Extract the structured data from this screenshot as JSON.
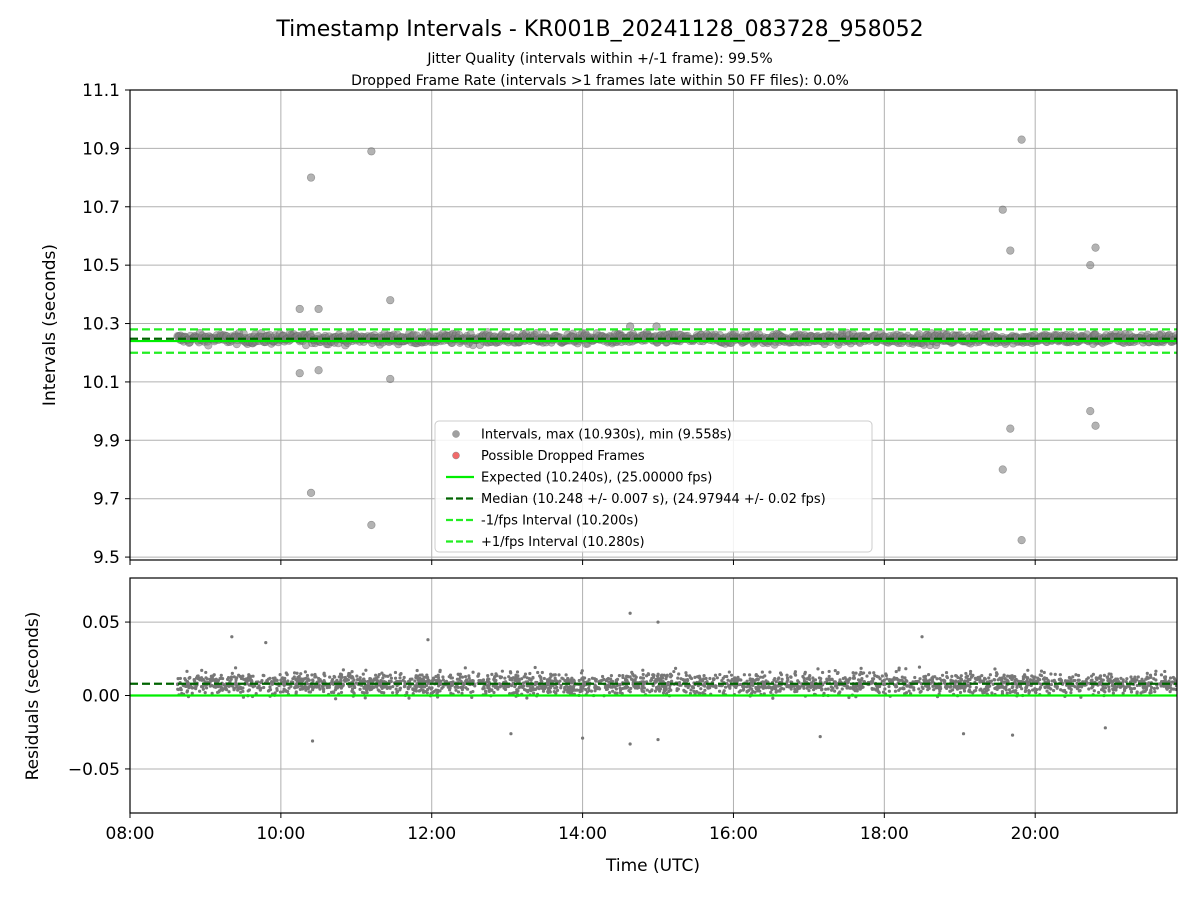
{
  "figure": {
    "title": "Timestamp Intervals - KR001B_20241128_083728_958052",
    "subtitle_jitter": "Jitter Quality (intervals within +/-1 frame): 99.5%",
    "subtitle_dropped": "Dropped Frame Rate (intervals >1 frames late within 50 FF files): 0.0%"
  },
  "chart_data": [
    {
      "type": "scatter",
      "ylabel": "Intervals (seconds)",
      "xlim_hours": [
        8.0,
        21.88
      ],
      "ylim": [
        9.49,
        11.1
      ],
      "yticks": [
        9.5,
        9.7,
        9.9,
        10.1,
        10.3,
        10.5,
        10.7,
        10.9,
        11.1
      ],
      "ytick_labels": [
        "9.5",
        "9.7",
        "9.9",
        "10.1",
        "10.3",
        "10.5",
        "10.7",
        "10.9",
        "11.1"
      ],
      "grid": true,
      "legend_position": "lower-center",
      "band": {
        "x_start_hours": 8.63,
        "x_end_hours": 21.88,
        "center": 10.248,
        "spread": 0.03
      },
      "outliers": [
        [
          10.25,
          10.35
        ],
        [
          10.25,
          10.13
        ],
        [
          10.4,
          10.8
        ],
        [
          10.4,
          9.72
        ],
        [
          10.5,
          10.35
        ],
        [
          10.5,
          10.14
        ],
        [
          11.2,
          10.89
        ],
        [
          11.2,
          9.61
        ],
        [
          11.45,
          10.38
        ],
        [
          11.45,
          10.11
        ],
        [
          14.63,
          10.29
        ],
        [
          14.98,
          10.29
        ],
        [
          19.57,
          10.69
        ],
        [
          19.57,
          9.8
        ],
        [
          19.67,
          10.55
        ],
        [
          19.67,
          9.94
        ],
        [
          19.82,
          10.93
        ],
        [
          19.82,
          9.558
        ],
        [
          20.73,
          10.5
        ],
        [
          20.73,
          10.0
        ],
        [
          20.8,
          10.56
        ],
        [
          20.8,
          9.95
        ]
      ],
      "lines": {
        "expected": 10.24,
        "median": 10.248,
        "minus_interval": 10.2,
        "plus_interval": 10.28
      },
      "colors": {
        "points": "#808080",
        "dropped": "#ff4040",
        "expected": "#00ee00",
        "median": "#006400",
        "interval": "#22ee22"
      },
      "legend": [
        {
          "label": "Intervals, max (10.930s), min (9.558s)",
          "kind": "marker",
          "color": "#a0a0a0"
        },
        {
          "label": "Possible Dropped Frames",
          "kind": "marker",
          "color": "#f06a6a"
        },
        {
          "label": "Expected (10.240s), (25.00000 fps)",
          "kind": "solid",
          "color": "#00ee00"
        },
        {
          "label": "Median (10.248 +/- 0.007 s), (24.97944 +/- 0.02 fps)",
          "kind": "dashed",
          "color": "#006400"
        },
        {
          "label": "-1/fps Interval (10.200s)",
          "kind": "dashed",
          "color": "#22ee22"
        },
        {
          "label": "+1/fps Interval (10.280s)",
          "kind": "dashed",
          "color": "#22ee22"
        }
      ]
    },
    {
      "type": "scatter",
      "xlabel": "Time (UTC)",
      "ylabel": "Residuals (seconds)",
      "xlim_hours": [
        8.0,
        21.88
      ],
      "ylim": [
        -0.08,
        0.08
      ],
      "yticks": [
        -0.05,
        0.0,
        0.05
      ],
      "ytick_labels": [
        "−0.05",
        "0.00",
        "0.05"
      ],
      "xticks_hours": [
        8,
        10,
        12,
        14,
        16,
        18,
        20
      ],
      "xtick_labels": [
        "08:00",
        "10:00",
        "12:00",
        "14:00",
        "16:00",
        "18:00",
        "20:00"
      ],
      "grid": true,
      "band": {
        "x_start_hours": 8.63,
        "x_end_hours": 21.88,
        "center": 0.008,
        "spread": 0.008
      },
      "outliers": [
        [
          9.35,
          0.04
        ],
        [
          9.8,
          0.036
        ],
        [
          11.95,
          0.038
        ],
        [
          14.63,
          0.056
        ],
        [
          15.0,
          0.05
        ],
        [
          18.5,
          0.04
        ],
        [
          10.42,
          -0.031
        ],
        [
          13.05,
          -0.026
        ],
        [
          14.0,
          -0.029
        ],
        [
          14.63,
          -0.033
        ],
        [
          15.0,
          -0.03
        ],
        [
          17.15,
          -0.028
        ],
        [
          19.05,
          -0.026
        ],
        [
          19.7,
          -0.027
        ],
        [
          20.93,
          -0.022
        ]
      ],
      "lines": {
        "zero": 0.0,
        "median": 0.008
      },
      "colors": {
        "points": "#777777",
        "expected": "#00ee00",
        "median": "#006400"
      }
    }
  ]
}
